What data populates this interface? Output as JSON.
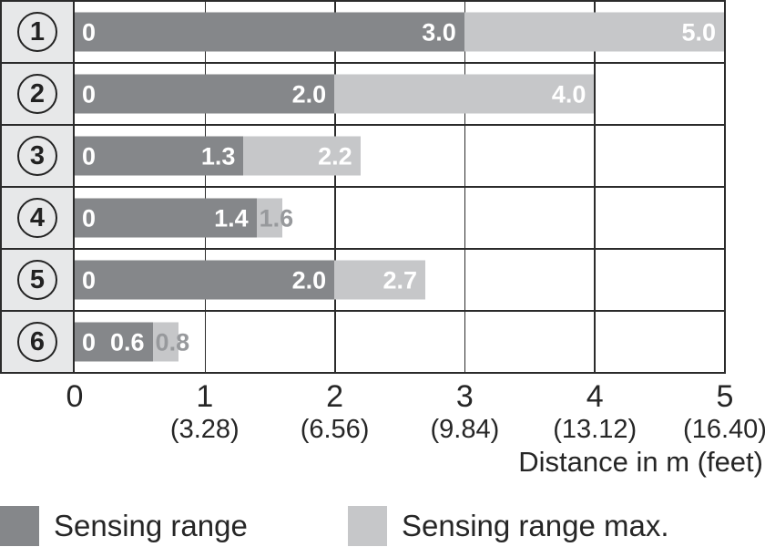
{
  "chart_data": {
    "type": "bar",
    "title": "",
    "xlabel": "Distance in m (feet)",
    "xlim": [
      0,
      5
    ],
    "grid": true,
    "legend_position": "bottom",
    "x_ticks": [
      {
        "value": 0,
        "m": "0",
        "feet": ""
      },
      {
        "value": 1,
        "m": "1",
        "feet": "(3.28)"
      },
      {
        "value": 2,
        "m": "2",
        "feet": "(6.56)"
      },
      {
        "value": 3,
        "m": "3",
        "feet": "(9.84)"
      },
      {
        "value": 4,
        "m": "4",
        "feet": "(13.12)"
      },
      {
        "value": 5,
        "m": "5",
        "feet": "(16.40)"
      }
    ],
    "legend": [
      {
        "label": "Sensing range",
        "color": "#85878a"
      },
      {
        "label": "Sensing range max.",
        "color": "#c6c7c9"
      }
    ],
    "rows": [
      {
        "id": "1",
        "start_label": "0",
        "sensing_range": 3.0,
        "sensing_label": "3.0",
        "max_range": 5.0,
        "max_label": "5.0"
      },
      {
        "id": "2",
        "start_label": "0",
        "sensing_range": 2.0,
        "sensing_label": "2.0",
        "max_range": 4.0,
        "max_label": "4.0"
      },
      {
        "id": "3",
        "start_label": "0",
        "sensing_range": 1.3,
        "sensing_label": "1.3",
        "max_range": 2.2,
        "max_label": "2.2"
      },
      {
        "id": "4",
        "start_label": "0",
        "sensing_range": 1.4,
        "sensing_label": "1.4",
        "max_range": 1.6,
        "max_label": "1.6"
      },
      {
        "id": "5",
        "start_label": "0",
        "sensing_range": 2.0,
        "sensing_label": "2.0",
        "max_range": 2.7,
        "max_label": "2.7"
      },
      {
        "id": "6",
        "start_label": "0",
        "sensing_range": 0.6,
        "sensing_label": "0.6",
        "max_range": 0.8,
        "max_label": "0.8"
      }
    ],
    "colors": {
      "sensing_bar": "#85878a",
      "max_bar": "#c6c7c9",
      "row_header_bg": "#e7e8e9",
      "border": "#2b2b2b",
      "bar_text": "#ffffff",
      "overflow_text": "#97999c",
      "axis_text": "#262626"
    }
  }
}
